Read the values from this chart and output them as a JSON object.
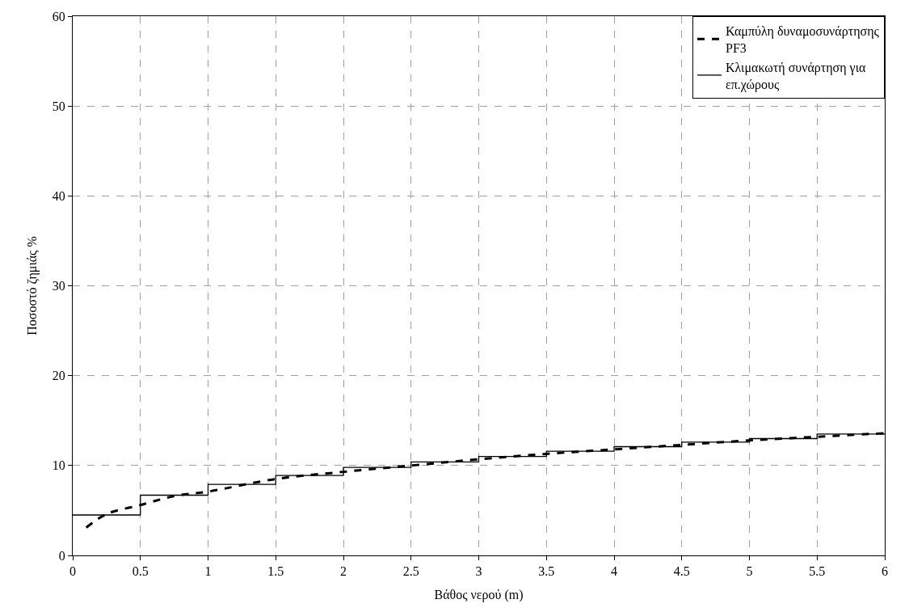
{
  "chart_data": {
    "type": "line",
    "xlabel": "Βάθος νερού (m)",
    "ylabel": "Ποσοστό ζημιάς %",
    "xlim": [
      0,
      6
    ],
    "xticks": [
      0,
      0.5,
      1,
      1.5,
      2,
      2.5,
      3,
      3.5,
      4,
      4.5,
      5,
      5.5,
      6
    ],
    "ylim": [
      0,
      60
    ],
    "yticks": [
      0,
      10,
      20,
      30,
      40,
      50,
      60
    ],
    "grid": true,
    "legend": "top right",
    "series": [
      {
        "name": "Καμπύλη δυναμοσυνάρτησης PF3",
        "line_style": "dashed",
        "color": "#000000",
        "x": [
          0.1,
          0.25,
          0.5,
          0.75,
          1,
          1.5,
          2,
          2.5,
          3,
          3.5,
          4,
          4.5,
          5,
          5.5,
          6
        ],
        "values": [
          3.1,
          4.6,
          5.6,
          6.6,
          7.1,
          8.5,
          9.3,
          10.0,
          10.7,
          11.3,
          11.8,
          12.3,
          12.8,
          13.2,
          13.6
        ]
      },
      {
        "name": "Κλιμακωτή συνάρτηση για επ.χώρους",
        "type": "step",
        "line_style": "solid",
        "color": "#000000",
        "x": [
          0,
          0.5,
          1,
          1.5,
          2,
          2.5,
          3,
          3.5,
          4,
          4.5,
          5,
          5.5,
          6
        ],
        "values": [
          4.5,
          6.7,
          7.9,
          8.9,
          9.8,
          10.4,
          11.0,
          11.6,
          12.1,
          12.6,
          13.0,
          13.5,
          13.5
        ]
      }
    ]
  }
}
